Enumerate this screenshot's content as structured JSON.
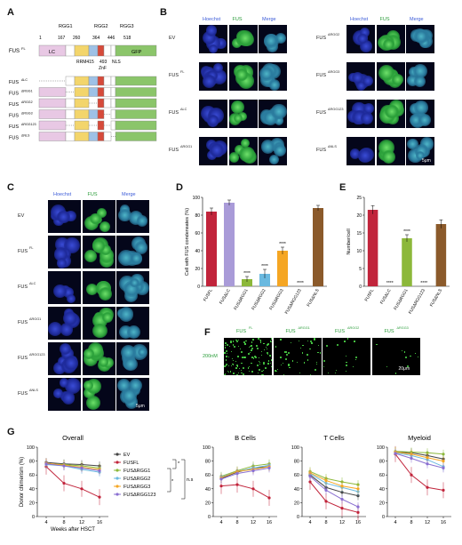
{
  "panels": {
    "A": "A",
    "B": "B",
    "C": "C",
    "D": "D",
    "E": "E",
    "F": "F",
    "G": "G"
  },
  "panelA": {
    "rgg_labels": [
      "RGG1",
      "RGG2",
      "RGG3"
    ],
    "position_numbers": [
      "1",
      "167",
      "260",
      "364",
      "446",
      "518"
    ],
    "domains": [
      "LC",
      "GFP",
      "RRM415",
      "493",
      "ZnF",
      "NLS"
    ],
    "constructs": [
      "FUS",
      "FUS",
      "FUS",
      "FUS",
      "FUS",
      "FUS",
      "FUS"
    ],
    "construct_sup": [
      "FL",
      "ΔLC",
      "ΔRGG1",
      "ΔRGG2",
      "ΔRGG3",
      "ΔRGG123",
      "ΔNLS"
    ]
  },
  "panelB": {
    "headers": [
      "Hoechst",
      "FUS",
      "Merge"
    ],
    "left_rows": [
      "EV",
      "FUS",
      "FUS",
      "FUS"
    ],
    "left_sup": [
      "",
      "FL",
      "ΔLC",
      "ΔRGG1"
    ],
    "right_rows": [
      "FUS",
      "FUS",
      "FUS",
      "FUS"
    ],
    "right_sup": [
      "ΔRGG2",
      "ΔRGG3",
      "ΔRGG123",
      "ΔNLS"
    ],
    "scalebar": "5μm"
  },
  "panelC": {
    "headers": [
      "Hoechst",
      "FUS",
      "Merge"
    ],
    "rows": [
      "EV",
      "FUS",
      "FUS",
      "FUS",
      "FUS",
      "FUS"
    ],
    "sup": [
      "",
      "FL",
      "ΔLC",
      "ΔRGG1",
      "ΔRGG123",
      "ΔNLS"
    ],
    "scalebar": "5μm"
  },
  "panelF": {
    "headers": [
      "FUS",
      "FUS",
      "FUS",
      "FUS"
    ],
    "header_sup": [
      "FL",
      "ΔRGG1",
      "ΔRGG2",
      "ΔRGG3"
    ],
    "row_label": "200nM",
    "scalebar": "20μm"
  },
  "chart_data": [
    {
      "id": "D",
      "type": "bar",
      "ylabel": "Cell with FUS condensates (%)",
      "ylim": [
        0,
        100
      ],
      "yticks": [
        "0",
        "20",
        "40",
        "60",
        "80",
        "100"
      ],
      "categories": [
        "FUSFL",
        "FUSΔLC",
        "FUSΔRGG1",
        "FUSΔRGG2",
        "FUSΔRGG3",
        "FUSΔRGG123",
        "FUSΔNLS"
      ],
      "values": [
        84,
        94,
        8,
        14,
        40,
        0,
        88
      ],
      "errors": [
        4,
        3,
        3,
        5,
        4,
        0,
        3
      ],
      "colors": [
        "#c1243b",
        "#a99bd8",
        "#8cb83a",
        "#6ab9e0",
        "#f5a623",
        "#a12222",
        "#8b5a2b"
      ],
      "significance": [
        "",
        "",
        "****",
        "****",
        "****",
        "****",
        ""
      ]
    },
    {
      "id": "E",
      "type": "bar",
      "ylabel": "Number/cell",
      "ylim": [
        0,
        25
      ],
      "yticks": [
        "0",
        "5",
        "10",
        "15",
        "20",
        "25"
      ],
      "categories": [
        "FUSFL",
        "FUSΔLC",
        "FUSΔRGG1",
        "FUSΔRGG123",
        "FUSΔNLS"
      ],
      "values": [
        21.5,
        0,
        13.5,
        0,
        17.5
      ],
      "errors": [
        1.2,
        0,
        1.0,
        0,
        1.2
      ],
      "colors": [
        "#c1243b",
        "#a99bd8",
        "#8cb83a",
        "#a12222",
        "#8b5a2b"
      ],
      "significance": [
        "",
        "****",
        "****",
        "****",
        ""
      ]
    },
    {
      "id": "G-overall",
      "type": "line",
      "title": "Overall",
      "ylabel": "Donor chimerism (%)",
      "xlabel": "Weeks after HSCT",
      "x": [
        4,
        8,
        12,
        16
      ],
      "ylim": [
        0,
        100
      ],
      "yticks": [
        "0",
        "20",
        "40",
        "60",
        "80",
        "100"
      ],
      "series": [
        {
          "name": "EV",
          "color": "#444444",
          "values": [
            78,
            76,
            75,
            73
          ]
        },
        {
          "name": "FUSFL",
          "color": "#c1243b",
          "values": [
            72,
            48,
            40,
            28
          ]
        },
        {
          "name": "FUSΔRGG1",
          "color": "#8cb83a",
          "values": [
            76,
            75,
            73,
            70
          ]
        },
        {
          "name": "FUSΔRGG2",
          "color": "#6ab9e0",
          "values": [
            75,
            73,
            68,
            64
          ]
        },
        {
          "name": "FUSΔRGG3",
          "color": "#f5a623",
          "values": [
            77,
            74,
            71,
            68
          ]
        },
        {
          "name": "FUSΔRGG123",
          "color": "#8a6fd1",
          "values": [
            76,
            73,
            70,
            66
          ]
        }
      ],
      "significance": [
        "*",
        "*",
        "n.s"
      ]
    },
    {
      "id": "G-bcells",
      "type": "line",
      "title": "B Cells",
      "x": [
        4,
        8,
        12,
        16
      ],
      "ylim": [
        0,
        100
      ],
      "yticks": [
        "0",
        "20",
        "40",
        "60",
        "80",
        "100"
      ],
      "series": [
        {
          "name": "EV",
          "color": "#444444",
          "values": [
            55,
            64,
            70,
            72
          ]
        },
        {
          "name": "FUSFL",
          "color": "#c1243b",
          "values": [
            44,
            46,
            40,
            27
          ]
        },
        {
          "name": "FUSΔRGG1",
          "color": "#8cb83a",
          "values": [
            58,
            66,
            73,
            76
          ]
        },
        {
          "name": "FUSΔRGG2",
          "color": "#6ab9e0",
          "values": [
            57,
            65,
            70,
            74
          ]
        },
        {
          "name": "FUSΔRGG3",
          "color": "#f5a623",
          "values": [
            56,
            65,
            68,
            72
          ]
        },
        {
          "name": "FUSΔRGG123",
          "color": "#8a6fd1",
          "values": [
            54,
            62,
            66,
            70
          ]
        }
      ]
    },
    {
      "id": "G-tcells",
      "type": "line",
      "title": "T Cells",
      "x": [
        4,
        8,
        12,
        16
      ],
      "ylim": [
        0,
        100
      ],
      "yticks": [
        "0",
        "20",
        "40",
        "60",
        "80",
        "100"
      ],
      "series": [
        {
          "name": "EV",
          "color": "#444444",
          "values": [
            60,
            42,
            35,
            30
          ]
        },
        {
          "name": "FUSFL",
          "color": "#c1243b",
          "values": [
            50,
            22,
            12,
            6
          ]
        },
        {
          "name": "FUSΔRGG1",
          "color": "#8cb83a",
          "values": [
            65,
            55,
            50,
            46
          ]
        },
        {
          "name": "FUSΔRGG2",
          "color": "#6ab9e0",
          "values": [
            62,
            48,
            42,
            36
          ]
        },
        {
          "name": "FUSΔRGG3",
          "color": "#f5a623",
          "values": [
            63,
            52,
            44,
            40
          ]
        },
        {
          "name": "FUSΔRGG123",
          "color": "#8a6fd1",
          "values": [
            58,
            38,
            25,
            14
          ]
        }
      ]
    },
    {
      "id": "G-myeloid",
      "type": "line",
      "title": "Myeloid",
      "x": [
        4,
        8,
        12,
        16
      ],
      "ylim": [
        0,
        100
      ],
      "yticks": [
        "0",
        "20",
        "40",
        "60",
        "80",
        "100"
      ],
      "series": [
        {
          "name": "EV",
          "color": "#444444",
          "values": [
            93,
            92,
            88,
            83
          ]
        },
        {
          "name": "FUSFL",
          "color": "#c1243b",
          "values": [
            90,
            60,
            42,
            38
          ]
        },
        {
          "name": "FUSΔRGG1",
          "color": "#8cb83a",
          "values": [
            94,
            93,
            92,
            90
          ]
        },
        {
          "name": "FUSΔRGG2",
          "color": "#6ab9e0",
          "values": [
            92,
            88,
            82,
            72
          ]
        },
        {
          "name": "FUSΔRGG3",
          "color": "#f5a623",
          "values": [
            93,
            90,
            85,
            80
          ]
        },
        {
          "name": "FUSΔRGG123",
          "color": "#8a6fd1",
          "values": [
            91,
            84,
            76,
            70
          ]
        }
      ]
    }
  ]
}
